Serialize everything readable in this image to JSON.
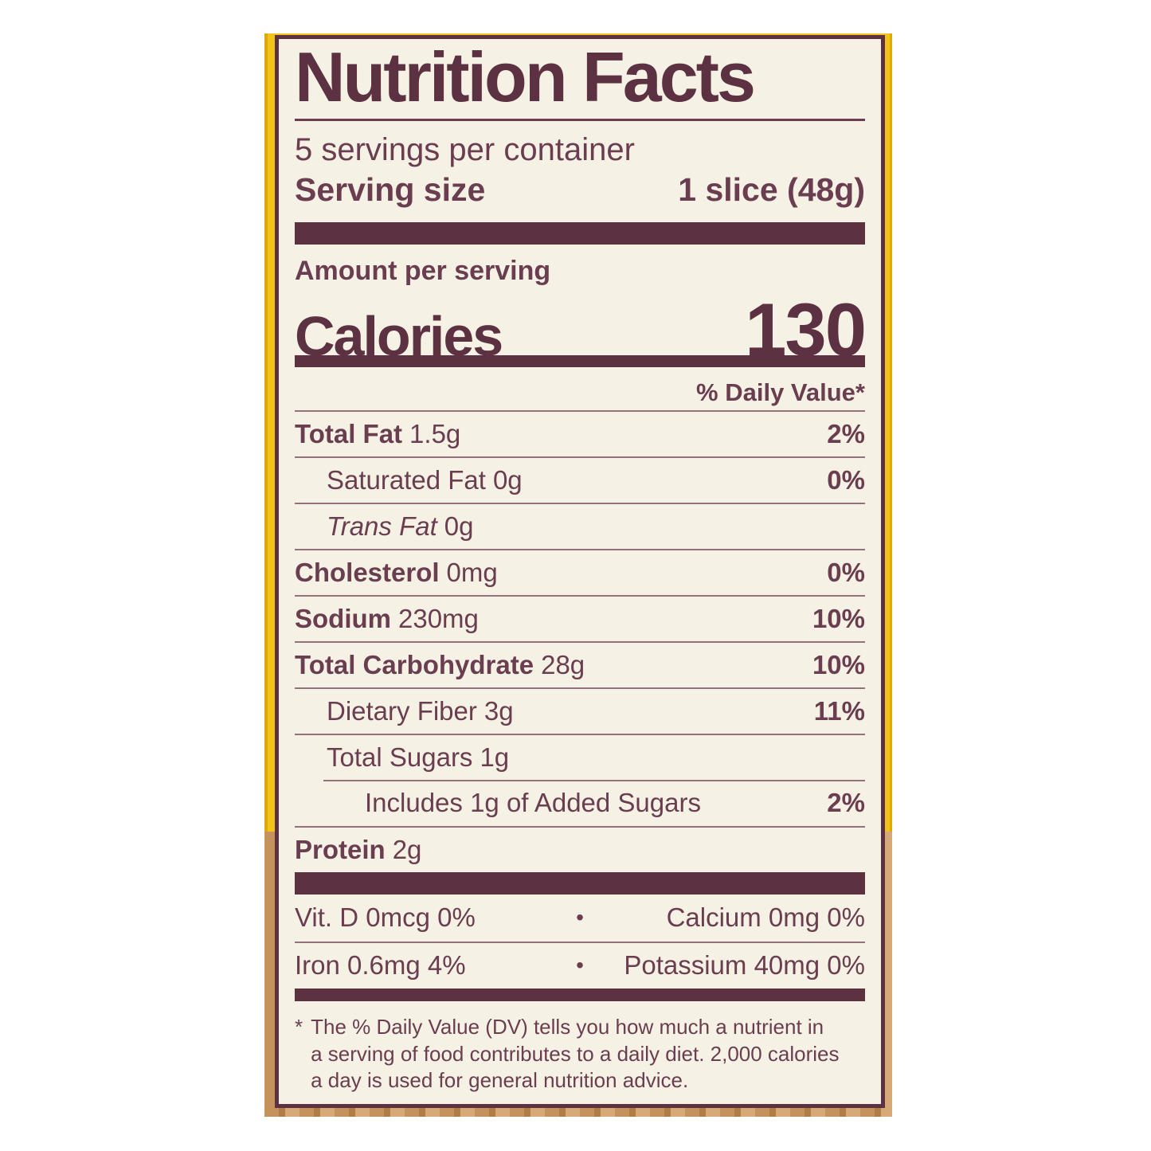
{
  "colors": {
    "ink": "#6a3e50",
    "ink_dark": "#5c3142",
    "hairline": "#97707d",
    "cream": "#f5f1e5",
    "yellow": "#f2c31b",
    "wood": "#c6925c",
    "wood_dark": "#b17d45",
    "wood_light": "#d6a976"
  },
  "label": {
    "title": "Nutrition Facts",
    "servings_per_container": "5 servings per container",
    "serving_size": {
      "label": "Serving size",
      "value": "1 slice (48g)"
    },
    "amount_per_serving": "Amount per serving",
    "calories": {
      "label": "Calories",
      "value": "130"
    },
    "daily_value_header": "% Daily Value*",
    "rows": [
      {
        "name": "Total Fat",
        "amount": "1.5g",
        "dv": "2%"
      },
      {
        "name": "Saturated Fat",
        "amount": "0g",
        "dv": "0%"
      },
      {
        "name": "Trans Fat",
        "amount": "0g",
        "dv": ""
      },
      {
        "name": "Cholesterol",
        "amount": "0mg",
        "dv": "0%"
      },
      {
        "name": "Sodium",
        "amount": "230mg",
        "dv": "10%"
      },
      {
        "name": "Total Carbohydrate",
        "amount": "28g",
        "dv": "10%"
      },
      {
        "name": "Dietary Fiber",
        "amount": "3g",
        "dv": "11%"
      },
      {
        "name": "Total Sugars",
        "amount": "1g",
        "dv": ""
      },
      {
        "name": "Includes 1g of Added Sugars",
        "amount": "",
        "dv": "2%"
      },
      {
        "name": "Protein",
        "amount": "2g",
        "dv": ""
      }
    ],
    "micronutrients": {
      "separator": "•",
      "rows": [
        {
          "left": "Vit. D 0mcg 0%",
          "right": "Calcium 0mg 0%"
        },
        {
          "left": "Iron 0.6mg 4%",
          "right": "Potassium 40mg 0%"
        }
      ]
    },
    "footnote": {
      "asterisk": "*",
      "lines": [
        "The % Daily Value (DV) tells you how much a nutrient in",
        "a serving of food contributes to a daily diet. 2,000 calories",
        "a day is used for general nutrition advice."
      ]
    }
  }
}
